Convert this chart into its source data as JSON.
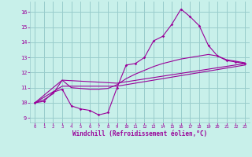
{
  "xlabel": "Windchill (Refroidissement éolien,°C)",
  "bg_color": "#c8f0ea",
  "grid_color": "#99cccc",
  "line_color": "#990099",
  "xlim": [
    -0.5,
    23.5
  ],
  "ylim": [
    8.7,
    16.7
  ],
  "yticks": [
    9,
    10,
    11,
    12,
    13,
    14,
    15,
    16
  ],
  "xticks": [
    0,
    1,
    2,
    3,
    4,
    5,
    6,
    7,
    8,
    9,
    10,
    11,
    12,
    13,
    14,
    15,
    16,
    17,
    18,
    19,
    20,
    21,
    22,
    23
  ],
  "line1_x": [
    0,
    1,
    2,
    3,
    4,
    5,
    6,
    7,
    8,
    9,
    10,
    11,
    12,
    13,
    14,
    15,
    16,
    17,
    18,
    19,
    20,
    21,
    22,
    23
  ],
  "line1_y": [
    10.0,
    10.1,
    10.7,
    10.9,
    9.8,
    9.6,
    9.5,
    9.2,
    9.35,
    11.0,
    12.5,
    12.6,
    13.0,
    14.1,
    14.4,
    15.2,
    16.2,
    15.7,
    15.1,
    13.8,
    13.1,
    12.8,
    12.7,
    12.6
  ],
  "line2_x": [
    0,
    1,
    2,
    3,
    4,
    5,
    6,
    7,
    8,
    9,
    10,
    11,
    12,
    13,
    14,
    15,
    16,
    17,
    18,
    19,
    20,
    21,
    22,
    23
  ],
  "line2_y": [
    10.0,
    10.2,
    10.6,
    11.5,
    11.0,
    10.95,
    10.9,
    10.9,
    10.95,
    11.2,
    11.6,
    11.9,
    12.15,
    12.4,
    12.6,
    12.75,
    12.9,
    13.0,
    13.1,
    13.2,
    13.1,
    12.85,
    12.75,
    12.65
  ],
  "line3_x": [
    0,
    3,
    9,
    23
  ],
  "line3_y": [
    10.0,
    11.5,
    11.3,
    12.6
  ],
  "line4_x": [
    0,
    3,
    9,
    23
  ],
  "line4_y": [
    10.0,
    11.1,
    11.1,
    12.5
  ]
}
